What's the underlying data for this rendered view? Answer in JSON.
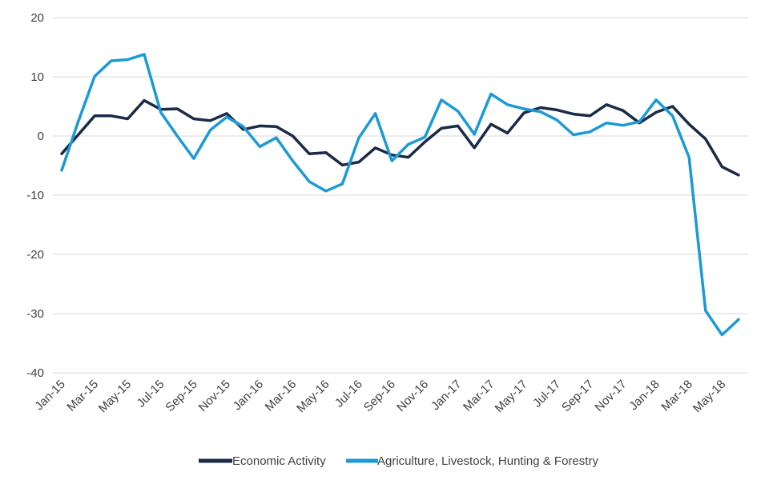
{
  "chart_data": {
    "type": "line",
    "title": "",
    "xlabel": "",
    "ylabel": "",
    "ylim": [
      -40,
      20
    ],
    "yticks": [
      20,
      10,
      0,
      -10,
      -20,
      -30,
      -40
    ],
    "grid": true,
    "legend_position": "bottom",
    "x": [
      "Jan-15",
      "Feb-15",
      "Mar-15",
      "Apr-15",
      "May-15",
      "Jun-15",
      "Jul-15",
      "Aug-15",
      "Sep-15",
      "Oct-15",
      "Nov-15",
      "Dec-15",
      "Jan-16",
      "Feb-16",
      "Mar-16",
      "Apr-16",
      "May-16",
      "Jun-16",
      "Jul-16",
      "Aug-16",
      "Sep-16",
      "Oct-16",
      "Nov-16",
      "Dec-16",
      "Jan-17",
      "Feb-17",
      "Mar-17",
      "Apr-17",
      "May-17",
      "Jun-17",
      "Jul-17",
      "Aug-17",
      "Sep-17",
      "Oct-17",
      "Nov-17",
      "Dec-17",
      "Jan-18",
      "Feb-18",
      "Mar-18",
      "Apr-18",
      "May-18",
      "Jun-18"
    ],
    "tick_labels": [
      "Jan-15",
      "Mar-15",
      "May-15",
      "Jul-15",
      "Sep-15",
      "Nov-15",
      "Jan-16",
      "Mar-16",
      "May-16",
      "Jul-16",
      "Sep-16",
      "Nov-16",
      "Jan-17",
      "Mar-17",
      "May-17",
      "Jul-17",
      "Sep-17",
      "Nov-17",
      "Jan-18",
      "Mar-18",
      "May-18"
    ],
    "series": [
      {
        "name": "Economic Activity",
        "color": "#1b2a47",
        "values": [
          -3,
          0.2,
          3.4,
          3.4,
          2.9,
          6.0,
          4.5,
          4.6,
          2.9,
          2.6,
          3.8,
          1.1,
          1.7,
          1.6,
          0,
          -3.0,
          -2.8,
          -4.9,
          -4.4,
          -2.0,
          -3.2,
          -3.6,
          -1.0,
          1.3,
          1.7,
          -2.0,
          2.0,
          0.5,
          3.9,
          4.8,
          4.4,
          3.7,
          3.4,
          5.3,
          4.3,
          2.2,
          4.0,
          5.0,
          2.0,
          -0.5,
          -5.2,
          -6.6
        ]
      },
      {
        "name": "Agriculture, Livestock, Hunting & Forestry",
        "color": "#1c9ad6",
        "values": [
          -5.8,
          2.4,
          10.1,
          12.7,
          12.9,
          13.8,
          4.0,
          0,
          -3.8,
          1.0,
          3.2,
          1.6,
          -1.8,
          -0.3,
          -4.2,
          -7.7,
          -9.3,
          -8.1,
          -0.3,
          3.8,
          -4.2,
          -1.4,
          -0.2,
          6.1,
          4.2,
          0.3,
          7.1,
          5.3,
          4.6,
          4.1,
          2.7,
          0.2,
          0.7,
          2.2,
          1.8,
          2.4,
          6.1,
          3.4,
          -3.6,
          -29.5,
          -33.6,
          -31.0
        ]
      }
    ]
  }
}
